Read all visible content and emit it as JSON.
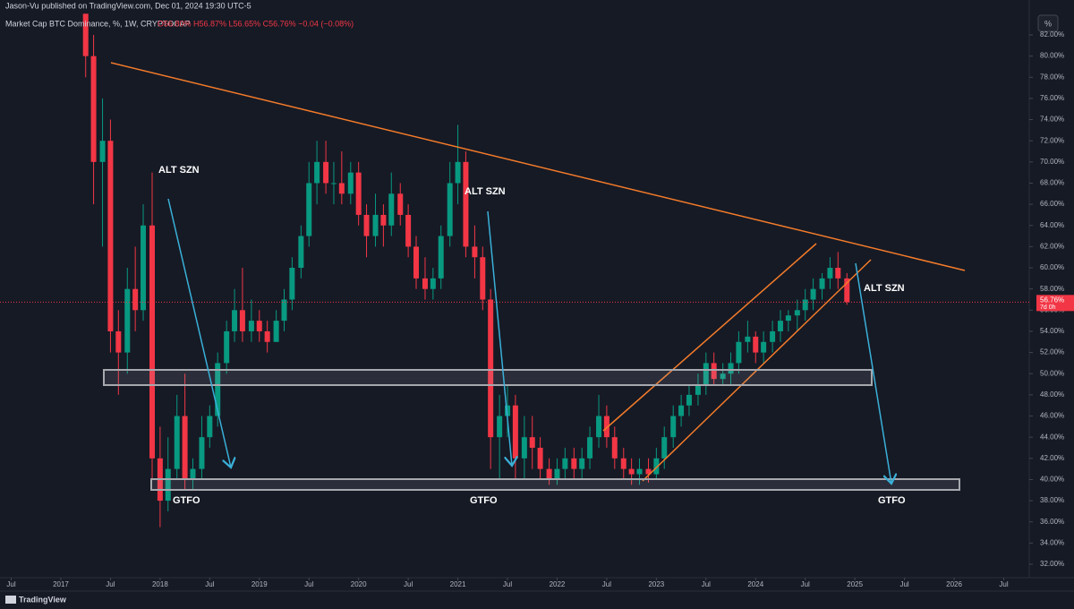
{
  "header": {
    "publisher": "Jason-Vu published on TradingView.com, Dec 01, 2024 19:30 UTC-5",
    "symbol": "Market Cap BTC Dominance, %, 1W, CRYPTOCAP",
    "ohlc": "O56.80% H56.87% L56.65% C56.76% −0.04 (−0.08%)",
    "unit_button": "%",
    "brand": "TradingView"
  },
  "chart_data": {
    "type": "candlestick",
    "up_color": "#089981",
    "down_color": "#f23645",
    "grid": false,
    "price_label": "56.76%",
    "countdown": "7d 0h",
    "last_price": 56.76,
    "annotations": [
      "ALT SZN",
      "ALT SZN",
      "ALT SZN",
      "GTFO",
      "GTFO",
      "GTFO"
    ],
    "xlim": [
      2016.387,
      2026.757
    ],
    "ylim": [
      30.73,
      84.03
    ],
    "xticks": [
      {
        "value": 2016.5,
        "label": "Jul"
      },
      2017,
      {
        "value": 2017.5,
        "label": "Jul"
      },
      2018,
      {
        "value": 2018.5,
        "label": "Jul"
      },
      2019,
      {
        "value": 2019.5,
        "label": "Jul"
      },
      2020,
      {
        "value": 2020.5,
        "label": "Jul"
      },
      2021,
      {
        "value": 2021.5,
        "label": "Jul"
      },
      2022,
      {
        "value": 2022.5,
        "label": "Jul"
      },
      2023,
      {
        "value": 2023.5,
        "label": "Jul"
      },
      2024,
      {
        "value": 2024.5,
        "label": "Jul"
      },
      2025,
      {
        "value": 2025.5,
        "label": "Jul"
      },
      2026,
      {
        "value": 2026.5,
        "label": "Jul"
      }
    ],
    "yticks": [
      {
        "value": 32,
        "label": "32.00%"
      },
      {
        "value": 34,
        "label": "34.00%"
      },
      {
        "value": 36,
        "label": "36.00%"
      },
      {
        "value": 38,
        "label": "38.00%"
      },
      {
        "value": 40,
        "label": "40.00%"
      },
      {
        "value": 42,
        "label": "42.00%"
      },
      {
        "value": 44,
        "label": "44.00%"
      },
      {
        "value": 46,
        "label": "46.00%"
      },
      {
        "value": 48,
        "label": "48.00%"
      },
      {
        "value": 50,
        "label": "50.00%"
      },
      {
        "value": 52,
        "label": "52.00%"
      },
      {
        "value": 54,
        "label": "54.00%"
      },
      {
        "value": 56,
        "label": "56.00%"
      },
      {
        "value": 58,
        "label": "58.00%"
      },
      {
        "value": 60,
        "label": "60.00%"
      },
      {
        "value": 62,
        "label": "62.00%"
      },
      {
        "value": 64,
        "label": "64.00%"
      },
      {
        "value": 66,
        "label": "66.00%"
      },
      {
        "value": 68,
        "label": "68.00%"
      },
      {
        "value": 70,
        "label": "70.00%"
      },
      {
        "value": 72,
        "label": "72.00%"
      },
      {
        "value": 74,
        "label": "74.00%"
      },
      {
        "value": 76,
        "label": "76.00%"
      },
      {
        "value": 78,
        "label": "78.00%"
      },
      {
        "value": 80,
        "label": "80.00%"
      },
      {
        "value": 82,
        "label": "82.00%"
      }
    ],
    "x": [
      2017.25,
      2017.33,
      2017.42,
      2017.5,
      2017.58,
      2017.67,
      2017.75,
      2017.83,
      2017.92,
      2018.0,
      2018.08,
      2018.17,
      2018.25,
      2018.33,
      2018.42,
      2018.5,
      2018.58,
      2018.67,
      2018.75,
      2018.83,
      2018.92,
      2019.0,
      2019.08,
      2019.17,
      2019.25,
      2019.33,
      2019.42,
      2019.5,
      2019.58,
      2019.67,
      2019.75,
      2019.83,
      2019.92,
      2020.0,
      2020.08,
      2020.17,
      2020.25,
      2020.33,
      2020.42,
      2020.5,
      2020.58,
      2020.67,
      2020.75,
      2020.83,
      2020.92,
      2021.0,
      2021.08,
      2021.17,
      2021.25,
      2021.33,
      2021.42,
      2021.5,
      2021.58,
      2021.67,
      2021.75,
      2021.83,
      2021.92,
      2022.0,
      2022.08,
      2022.17,
      2022.25,
      2022.33,
      2022.42,
      2022.5,
      2022.58,
      2022.67,
      2022.75,
      2022.83,
      2022.92,
      2023.0,
      2023.08,
      2023.17,
      2023.25,
      2023.33,
      2023.42,
      2023.5,
      2023.58,
      2023.67,
      2023.75,
      2023.83,
      2023.92,
      2024.0,
      2024.08,
      2024.17,
      2024.25,
      2024.33,
      2024.42,
      2024.5,
      2024.58,
      2024.67,
      2024.75,
      2024.83,
      2024.92
    ],
    "open": [
      84,
      80,
      70,
      72,
      54,
      52,
      58,
      56,
      64,
      42,
      38,
      41,
      46,
      40,
      41,
      44,
      46,
      51,
      54,
      56,
      54,
      55,
      54,
      53,
      55,
      57,
      60,
      63,
      68,
      70,
      68,
      68,
      67,
      69,
      65,
      63,
      65,
      64,
      67,
      65,
      62,
      59,
      58,
      59,
      63,
      68,
      70,
      62,
      61,
      57,
      44,
      46,
      47,
      42,
      44,
      43,
      41,
      40,
      41,
      42,
      41,
      42,
      44,
      46,
      44,
      42,
      41,
      40.5,
      41,
      40.5,
      42,
      44,
      46,
      47,
      48,
      49,
      51,
      49.5,
      50,
      51,
      53,
      53.5,
      52,
      53,
      54,
      55,
      55.5,
      56,
      57,
      58,
      59,
      60,
      59
    ],
    "high": [
      84,
      82,
      76,
      74,
      56,
      60,
      62,
      66,
      69,
      45,
      44,
      48,
      50,
      42,
      46,
      47,
      52,
      55,
      58,
      60,
      57,
      56,
      55,
      56,
      58,
      61,
      64,
      70,
      72,
      72,
      70,
      71,
      70,
      70,
      66,
      67,
      66,
      69,
      68,
      66,
      63,
      61,
      60,
      64,
      70,
      73.5,
      71,
      64,
      62,
      58,
      48,
      49,
      48,
      46,
      46,
      44,
      42,
      42,
      43,
      43,
      43,
      45,
      48,
      47,
      45,
      43,
      42,
      42,
      42,
      43,
      45,
      47,
      48,
      49,
      50,
      52,
      52,
      51,
      52,
      54,
      55,
      54,
      54,
      55,
      56,
      56,
      57,
      58,
      59,
      59.5,
      61,
      61.5,
      59.5
    ],
    "low": [
      78,
      66,
      62,
      52,
      48,
      50,
      54,
      55,
      40,
      35.5,
      37,
      40,
      39,
      39,
      40,
      43,
      45,
      50,
      53,
      53,
      53,
      53,
      52,
      53,
      54,
      56,
      59,
      62,
      66,
      67,
      66,
      66,
      66,
      64,
      61,
      62,
      62,
      63,
      64,
      61,
      58,
      57,
      57,
      58,
      62,
      66,
      61,
      59,
      56,
      41,
      40,
      44,
      40,
      40,
      41,
      40,
      39.5,
      39.5,
      40,
      40,
      40,
      41,
      43,
      43,
      41,
      40,
      39.5,
      39.5,
      39.7,
      40,
      41,
      43,
      45,
      46,
      47,
      48,
      49,
      49,
      49,
      50,
      52,
      51,
      51,
      52,
      53,
      54,
      54,
      55,
      56,
      57,
      58,
      58,
      56.5
    ],
    "close": [
      80,
      70,
      72,
      54,
      52,
      58,
      56,
      64,
      42,
      38,
      41,
      46,
      40,
      41,
      44,
      46,
      51,
      54,
      56,
      54,
      55,
      54,
      53,
      55,
      57,
      60,
      63,
      68,
      70,
      68,
      68,
      67,
      69,
      65,
      63,
      65,
      64,
      67,
      65,
      62,
      59,
      58,
      59,
      63,
      68,
      70,
      62,
      61,
      57,
      44,
      46,
      47,
      42,
      44,
      43,
      41,
      40,
      41,
      42,
      41,
      42,
      44,
      46,
      44,
      42,
      41,
      40.5,
      41,
      40.5,
      42,
      44,
      46,
      47,
      48,
      49,
      51,
      49.5,
      50,
      51,
      53,
      53.5,
      52,
      53,
      54,
      55,
      55.5,
      56,
      57,
      58,
      59,
      60,
      59,
      56.76
    ]
  }
}
